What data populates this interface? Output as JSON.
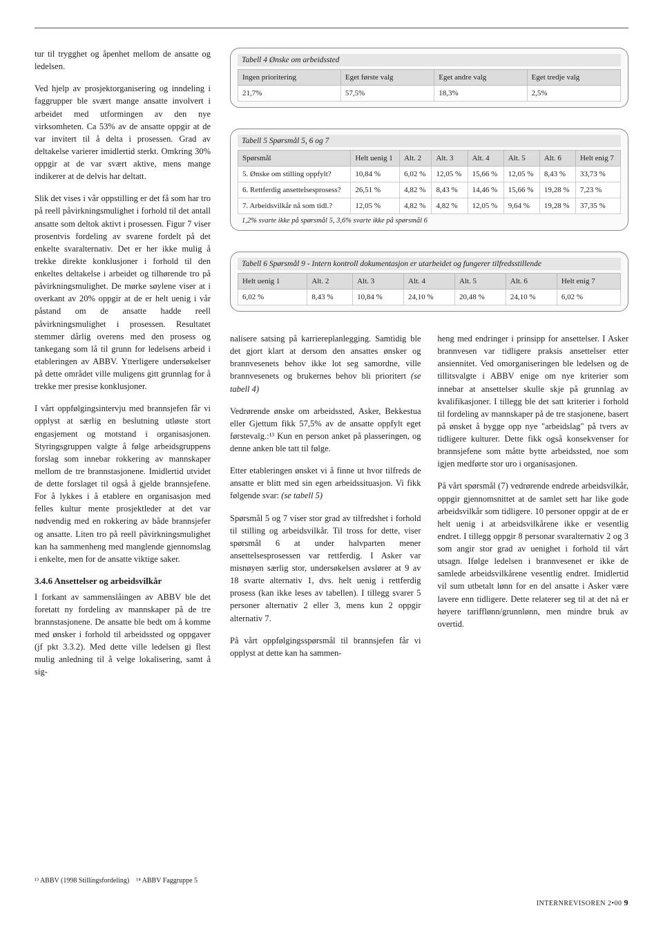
{
  "leftColumn": {
    "p1": "tur til trygghet og åpenhet mellom de ansatte og ledelsen.",
    "p2": "Ved hjelp av prosjektorganisering og inndeling i faggrupper ble svært mange ansatte involvert i arbeidet med utformingen av den nye virksomheten. Ca 53% av de ansatte oppgir at de var invitert til å delta i prosessen. Grad av deltakelse varierer imidlertid sterkt. Omkring 30% oppgir at de var svært aktive, mens mange indikerer at de delvis har deltatt.",
    "p3": "Slik det vises i vår oppstilling er det få som har tro på reell påvirkningsmulighet i forhold til det antall ansatte som deltok aktivt i prosessen. Figur 7 viser prosentvis fordeling av svarene fordelt på det enkelte svaralternativ. Det er her ikke mulig å trekke direkte konklusjoner i forhold til den enkeltes deltakelse i arbeidet og tilhørende tro på påvirkningsmulighet. De mørke søylene viser at i overkant av 20% oppgir at de er helt uenig i vår påstand om de ansatte hadde reell påvirkningsmulighet i prosessen. Resultatet stemmer dårlig overens med den prosess og tankegang som lå til grunn for ledelsens arbeid i etableringen av ABBV. Ytterligere undersøkelser på dette området ville muligens gitt grunnlag for å trekke mer presise konklusjoner.",
    "p4": "I vårt oppfølgingsintervju med brannsjefen får vi opplyst at særlig en beslutning utløste stort engasjement og motstand i organisasjonen. Styringsgruppen valgte å følge arbeidsgruppens forslag som innebar rokkering av mannskaper mellom de tre brannstasjonene. Imidlertid utvidet de dette forslaget til også å gjelde brannsjefene. For å lykkes i å etablere en organisasjon med felles kultur mente prosjektleder at det var nødvendig med en rokkering av både brannsjefer og ansatte. Liten tro på reell påvirkningsmulighet kan ha sammenheng med manglende gjennomslag i enkelte, men for de ansatte viktige saker.",
    "heading": "3.4.6 Ansettelser og arbeidsvilkår",
    "p5": "I forkant av sammenslåingen av ABBV ble det foretatt ny fordeling av mannskaper på de tre brannstasjonene. De ansatte ble bedt om å komme med ønsker i forhold til arbeidssted og oppgaver (jf pkt 3.3.2). Med dette ville ledelsen gi flest mulig anledning til å velge lokalisering, samt å sig-"
  },
  "table4": {
    "caption": "Tabell 4 Ønske om arbeidssted",
    "headers": [
      "Ingen prioritering",
      "Eget første valg",
      "Eget andre valg",
      "Eget tredje valg"
    ],
    "row": [
      "21,7%",
      "57,5%",
      "18,3%",
      "2,5%"
    ]
  },
  "table5": {
    "caption": "Tabell 5 Spørsmål 5, 6 og 7",
    "headers": [
      "Spørsmål",
      "Helt uenig 1",
      "Alt. 2",
      "Alt. 3",
      "Alt. 4",
      "Alt. 5",
      "Alt. 6",
      "Helt enig 7"
    ],
    "rows": [
      [
        "5. Ønske om stilling oppfylt?",
        "10,84 %",
        "6,02 %",
        "12,05 %",
        "15,66 %",
        "12,05 %",
        "8,43 %",
        "33,73 %"
      ],
      [
        "6. Rettferdig ansettelsesprosess?",
        "26,51 %",
        "4,82 %",
        "8,43 %",
        "14,46 %",
        "15,66 %",
        "19,28 %",
        "7,23 %"
      ],
      [
        "7. Arbeidsvilkår nå som tidl.?",
        "12,05 %",
        "4,82 %",
        "4,82 %",
        "12,05 %",
        "9,64 %",
        "19,28 %",
        "37,35 %"
      ]
    ],
    "footnote": "1,2% svarte ikke på spørsmål 5,  3,6% svarte ikke på spørsmål 6"
  },
  "table6": {
    "caption": "Tabell 6  Spørsmål 9 - Intern kontroll dokumentasjon er utarbeidet og fungerer tilfredsstillende",
    "headers": [
      "Helt uenig 1",
      "Alt. 2",
      "Alt. 3",
      "Alt. 4",
      "Alt. 5",
      "Alt. 6",
      "Helt enig 7"
    ],
    "row": [
      "6,02 %",
      "8,43 %",
      "10,84 %",
      "24,10 %",
      "20,48 %",
      "24,10 %",
      "6,02 %"
    ]
  },
  "bodyCols": {
    "p1a": "nalisere satsing på karriereplanlegging. Samtidig ble det gjort klart at dersom den ansattes ønsker og brannvesenets behov ikke lot seg samordne, ville brannvesenets og brukernes behov bli prioritert ",
    "p1b": "(se tabell 4)",
    "p2": "Vedrørende ønske om arbeidssted, Asker, Bekkestua eller Gjettum fikk 57,5% av de ansatte oppfylt eget førstevalg.:¹³  Kun en person anket på plasseringen, og denne anken ble tatt til følge.",
    "p3a": "Etter etableringen ønsket vi å finne ut hvor tilfreds de ansatte er blitt med sin egen arbeidssituasjon. Vi fikk følgende svar: ",
    "p3b": "(se tabell 5)",
    "p4": "Spørsmål 5 og 7 viser stor grad av tilfredshet i forhold til stilling og arbeidsvilkår. Til tross for dette, viser spørsmål 6 at under halvparten mener ansettelsesprosessen var rettferdig. I Asker var misnøyen særlig stor, undersøkelsen avslører at 9 av 18 svarte alternativ 1, dvs. helt uenig i rettferdig prosess (kan ikke leses av tabellen). I tillegg svarer 5 personer alternativ 2 eller 3, mens kun 2 oppgir alternativ 7.",
    "p5": "På vårt oppfølgingsspørsmål til brannsjefen får vi opplyst at dette kan ha sammen-",
    "p6": "heng med endringer i prinsipp for ansettelser. I Asker brannvesen var tidligere praksis ansettelser etter ansiennitet. Ved omorganiseringen ble ledelsen og de tillitsvalgte i ABBV enige om nye kriterier som innebar at ansettelser skulle skje på grunnlag av kvalifikasjoner. I tillegg ble det satt kriterier i forhold til fordeling av mannskaper på de tre stasjonene, basert på ønsket å bygge opp nye \"arbeidslag\" på tvers av tidligere kulturer. Dette fikk også konsekvenser for brannsjefene som måtte bytte arbeidssted, noe som igjen medførte stor uro i organisasjonen.",
    "p7": "På vårt spørsmål (7) vedrørende endrede arbeidsvilkår, oppgir gjennomsnittet at de samlet sett har like gode arbeidsvilkår som tidligere. 10 personer oppgir at de er helt uenig i at arbeidsvilkårene ikke er vesentlig endret. I tillegg oppgir 8 personar svaralternativ 2 og 3 som angir stor grad av uenighet i forhold til vårt utsagn. Ifølge ledelsen i brannvesenet er ikke de samlede arbeidsvilkårene vesentlig endret. Imidlertid vil sum utbetalt lønn for en del ansatte i Asker være lavere enn tidligere. Dette relaterer seg til at det nå er høyere tarifflønn/grunnlønn, men mindre bruk av overtid."
  },
  "footnotes": {
    "f13": "¹³ ABBV (1998 Stillingsfordeling)",
    "f14": "¹⁴ ABBV Faggruppe 5"
  },
  "footer": {
    "text": "INTERNREVISOREN 2•00",
    "pageNum": "9"
  }
}
